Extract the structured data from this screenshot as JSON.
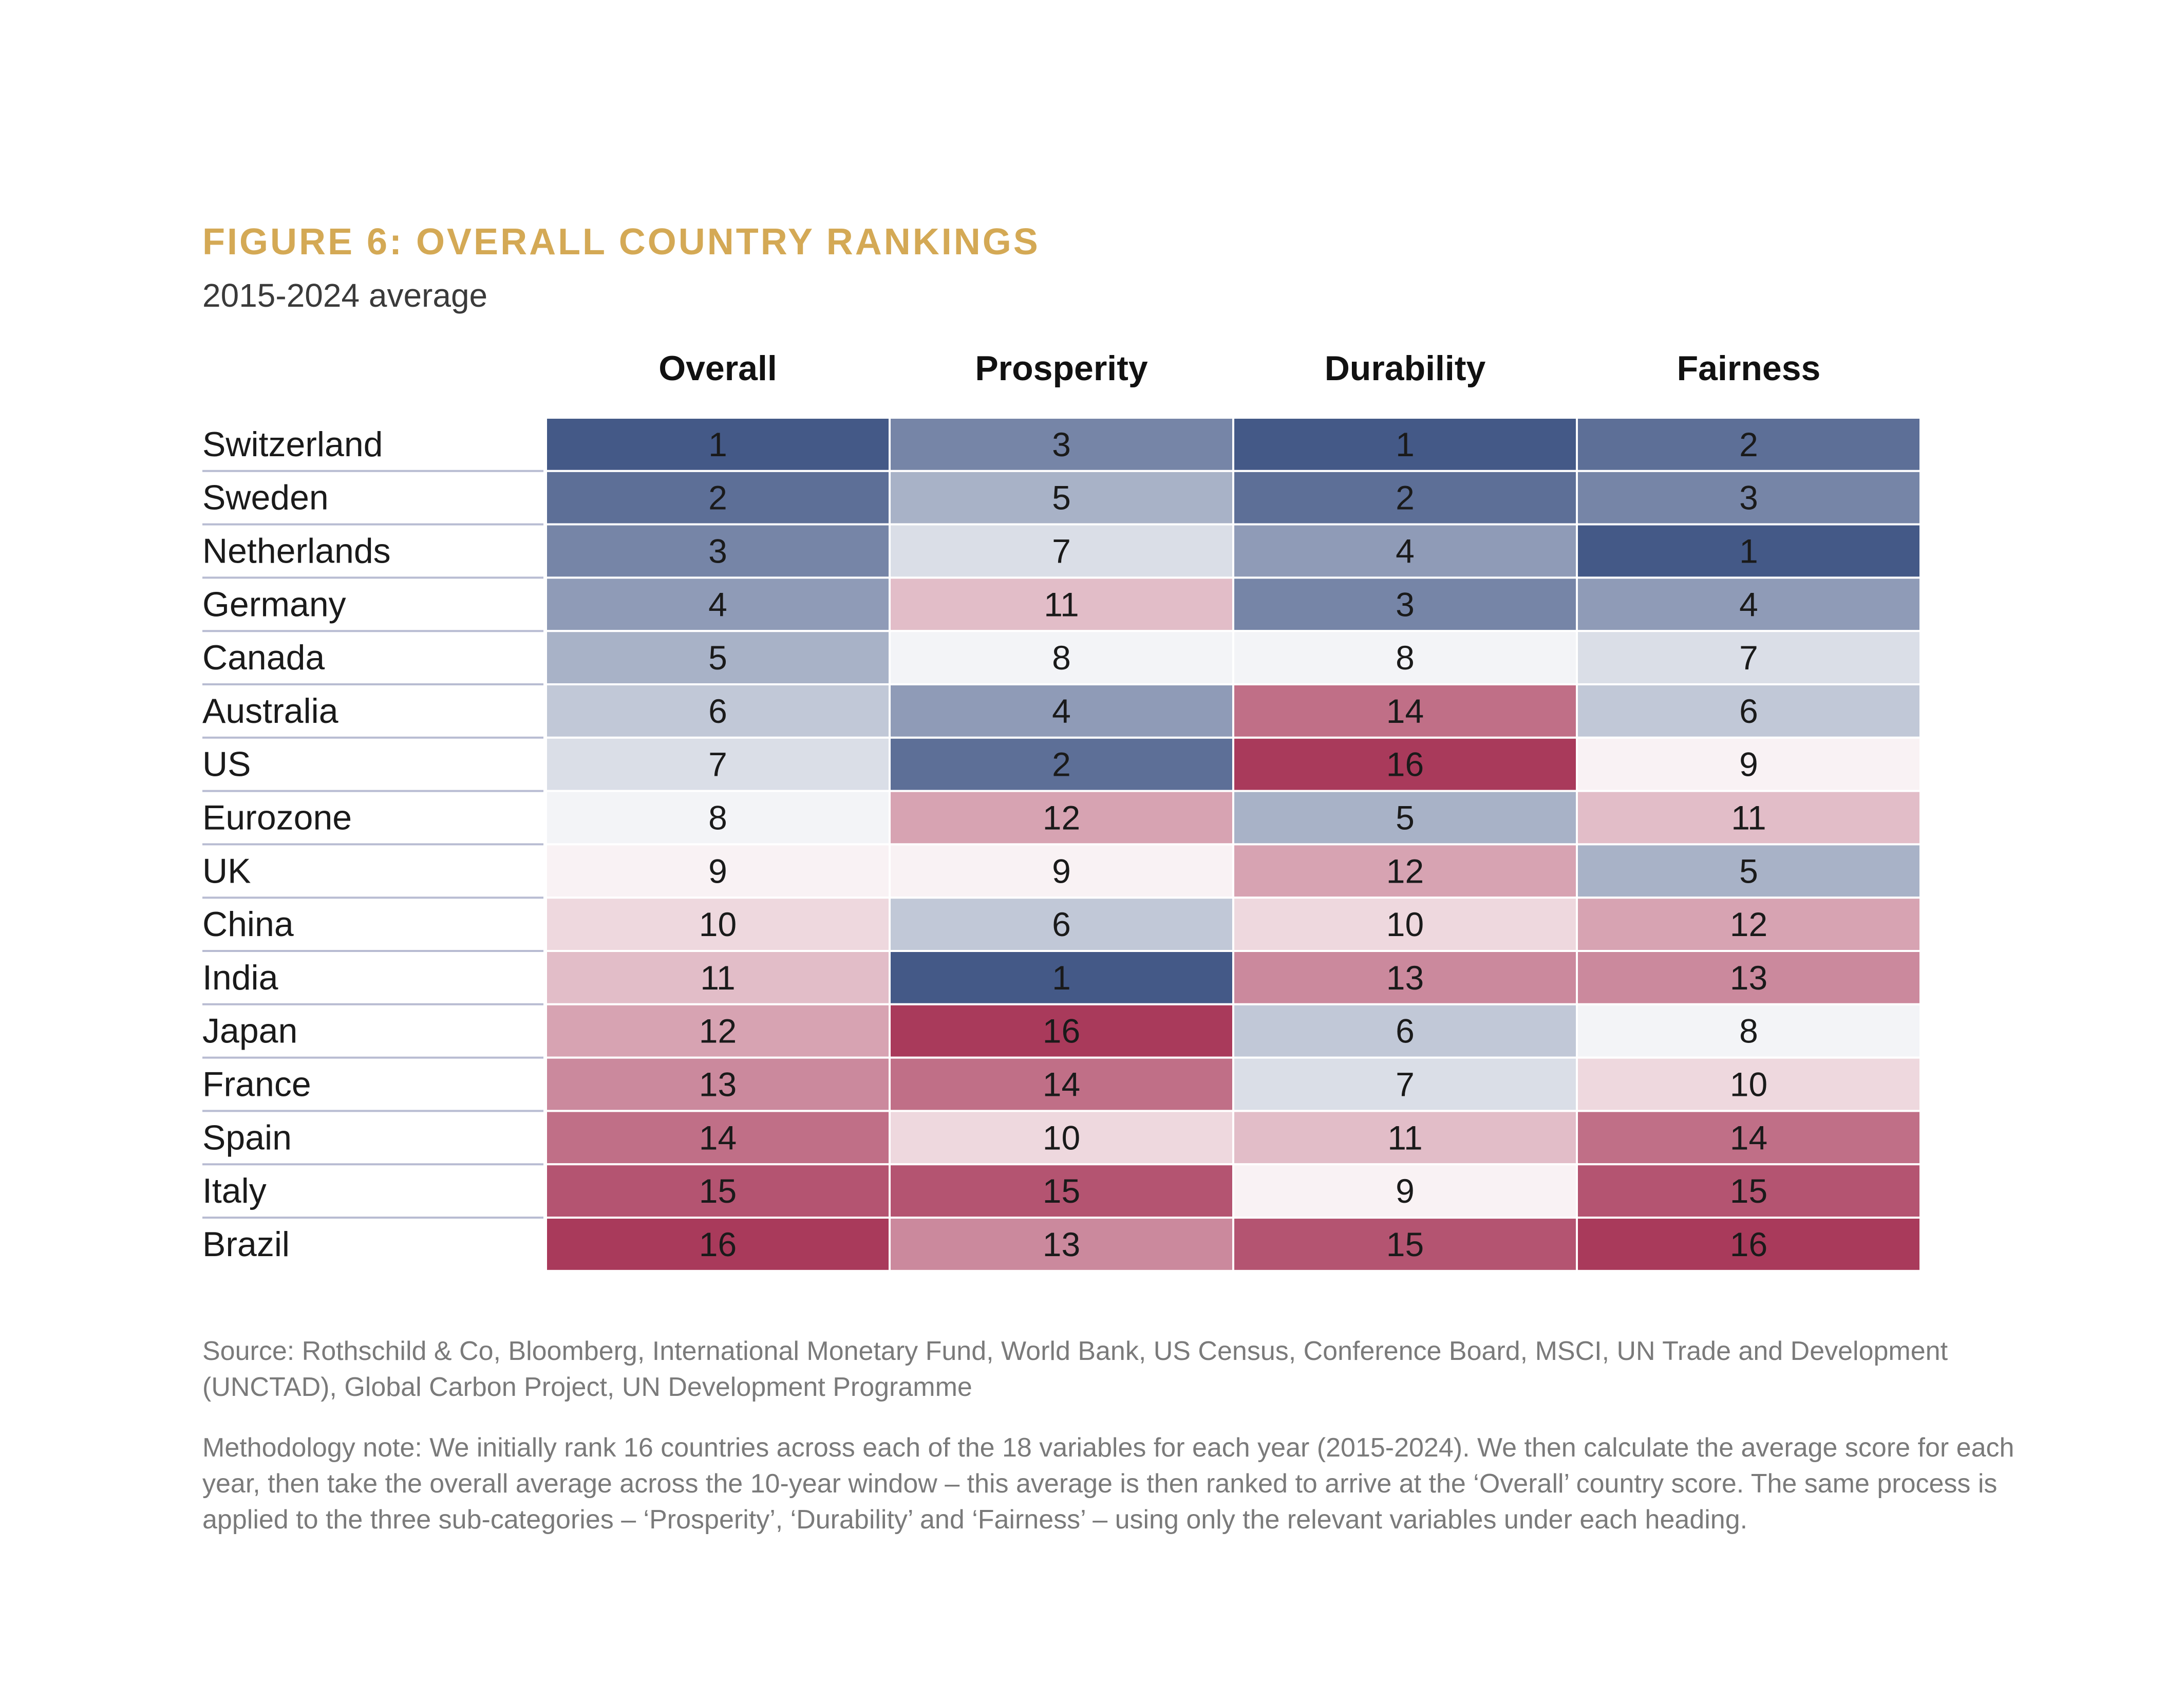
{
  "figure": {
    "title": "FIGURE 6: OVERALL COUNTRY RANKINGS",
    "subtitle": "2015-2024 average"
  },
  "chart_data": {
    "type": "heatmap",
    "title": "FIGURE 6: OVERALL COUNTRY RANKINGS",
    "subtitle": "2015-2024 average",
    "columns": [
      "Overall",
      "Prosperity",
      "Durability",
      "Fairness"
    ],
    "rows": [
      "Switzerland",
      "Sweden",
      "Netherlands",
      "Germany",
      "Canada",
      "Australia",
      "US",
      "Eurozone",
      "UK",
      "China",
      "India",
      "Japan",
      "France",
      "Spain",
      "Italy",
      "Brazil"
    ],
    "values": [
      [
        1,
        3,
        1,
        2
      ],
      [
        2,
        5,
        2,
        3
      ],
      [
        3,
        7,
        4,
        1
      ],
      [
        4,
        11,
        3,
        4
      ],
      [
        5,
        8,
        8,
        7
      ],
      [
        6,
        4,
        14,
        6
      ],
      [
        7,
        2,
        16,
        9
      ],
      [
        8,
        12,
        5,
        11
      ],
      [
        9,
        9,
        12,
        5
      ],
      [
        10,
        6,
        10,
        12
      ],
      [
        11,
        1,
        13,
        13
      ],
      [
        12,
        16,
        6,
        8
      ],
      [
        13,
        14,
        7,
        10
      ],
      [
        14,
        10,
        11,
        14
      ],
      [
        15,
        15,
        9,
        15
      ],
      [
        16,
        13,
        15,
        16
      ]
    ],
    "value_range": [
      1,
      16
    ],
    "color_scale": {
      "low": "#445987",
      "mid": "#ffffff",
      "high": "#A93A5B"
    }
  },
  "notes": {
    "source": "Source: Rothschild & Co, Bloomberg, International Monetary Fund, World Bank, US Census, Conference Board, MSCI, UN Trade and Development (UNCTAD), Global Carbon Project, UN Development Programme",
    "methodology": "Methodology note: We initially rank 16 countries across each of the 18 variables for each year (2015-2024). We then calculate the average score for each year, then take the overall average across the 10-year window – this average is then ranked to arrive at the ‘Overall’ country score. The same process is applied to the three sub-categories – ‘Prosperity’, ‘Durability’ and ‘Fairness’ – using only the relevant variables under each heading."
  },
  "colors": {
    "title": "#D4A955",
    "divider": "#B8BCD2",
    "note_text": "#7a7a7a"
  }
}
